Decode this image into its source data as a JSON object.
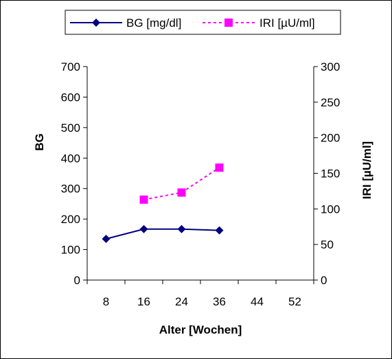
{
  "chart_data": {
    "type": "line",
    "x": [
      8,
      16,
      24,
      36,
      44,
      52
    ],
    "x_tick_labels": [
      "8",
      "16",
      "24",
      "36",
      "44",
      "52"
    ],
    "xlabel": "Alter [Wochen]",
    "ylabel_left": "BG",
    "ylabel_right": "IRI [µU/ml]",
    "ylim_left": [
      0,
      700
    ],
    "ylim_right": [
      0,
      300
    ],
    "yticks_left": [
      "0",
      "100",
      "200",
      "300",
      "400",
      "500",
      "600",
      "700"
    ],
    "yticks_right": [
      "0",
      "50",
      "100",
      "150",
      "200",
      "250",
      "300"
    ],
    "grid": false,
    "legend_position": "top",
    "series": [
      {
        "name": "BG [mg/dl]",
        "axis": "left",
        "style": "solid",
        "marker": "diamond",
        "color": "#000080",
        "values": [
          135,
          167,
          167,
          163,
          null,
          null
        ]
      },
      {
        "name": "IRI [µU/ml]",
        "axis": "right",
        "style": "dashed",
        "marker": "square",
        "color": "#FF00FF",
        "values": [
          null,
          113,
          123,
          158,
          null,
          null
        ]
      }
    ]
  }
}
